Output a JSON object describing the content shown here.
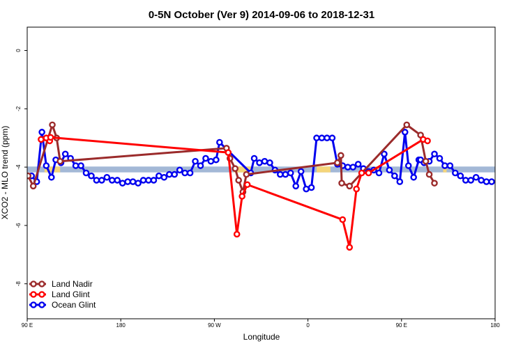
{
  "chart_data": {
    "type": "line",
    "title": "0-5N October (Ver 9)   2014-09-06 to 2018-12-31",
    "xlabel": "Longitude",
    "ylabel": "XCO2 - MLO trend (ppm)",
    "xlim": [
      -90,
      180
    ],
    "ylim": [
      -9.2,
      0.8
    ],
    "x_ticks": [
      {
        "value": -90,
        "label": "90 E"
      },
      {
        "value": -36,
        "label": "180"
      },
      {
        "value": 18,
        "label": "90 W"
      },
      {
        "value": 72,
        "label": "0"
      },
      {
        "value": 126,
        "label": "90 E"
      },
      {
        "value": 180,
        "label": "180"
      }
    ],
    "y_ticks": [
      {
        "value": 0,
        "label": "0"
      },
      {
        "value": -2,
        "label": "-2"
      },
      {
        "value": -4,
        "label": "-4"
      },
      {
        "value": -6,
        "label": "-6"
      },
      {
        "value": -8,
        "label": "-8"
      }
    ],
    "grid": false,
    "legend_position": "bottom-left",
    "reference_band": {
      "y_center": -4.08,
      "y_half_width": 0.1,
      "ocean_color": "#a3b8d6",
      "land_color": "#f5d57a",
      "land_segments": [
        [
          -80,
          -71
        ],
        [
          29,
          40
        ],
        [
          77,
          85
        ],
        [
          109,
          114
        ],
        [
          150,
          152
        ]
      ]
    },
    "series": [
      {
        "name": "Land Nadir",
        "color": "#9b2b2b",
        "x": [
          -89.5,
          -86.5,
          -75.5,
          -73,
          -71,
          25,
          27,
          30,
          32,
          34.5,
          36.5,
          89,
          91,
          91.5,
          96,
          129,
          137,
          140,
          142,
          145
        ],
        "y": [
          -4.3,
          -4.65,
          -2.55,
          -3.0,
          -3.8,
          -3.35,
          -3.7,
          -4.05,
          -4.45,
          -4.85,
          -4.25,
          -3.85,
          -3.6,
          -4.55,
          -4.65,
          -2.55,
          -2.9,
          -3.8,
          -4.25,
          -4.55
        ]
      },
      {
        "name": "Land Glint",
        "color": "#ff0000",
        "x": [
          -82,
          -77,
          -79,
          -76.5,
          26,
          31,
          34,
          37,
          92,
          96,
          100,
          103,
          107,
          138.5,
          141
        ],
        "y": [
          -3.05,
          -3.1,
          -3.0,
          -2.98,
          -3.5,
          -6.3,
          -5.0,
          -4.6,
          -5.8,
          -6.75,
          -4.75,
          -4.2,
          -4.2,
          -3.05,
          -3.1
        ]
      },
      {
        "name": "Ocean Glint",
        "color": "#0000ee",
        "x": [
          -87.5,
          -84.5,
          -81.5,
          -79,
          -76,
          -73.5,
          -70.5,
          -68,
          -65,
          -62,
          -59,
          -56,
          -53,
          -50,
          -47,
          -44,
          -41,
          -38,
          -35,
          -32,
          -29,
          -26,
          -23,
          -20,
          -17,
          -14,
          -11,
          -8,
          -5,
          -2,
          1,
          4,
          7,
          10,
          13,
          16,
          19,
          21,
          39,
          41,
          44,
          47,
          50,
          53,
          56,
          59,
          62,
          65,
          68,
          71,
          74,
          77,
          80,
          83,
          86,
          89,
          92,
          95,
          98,
          101,
          104,
          107,
          110,
          113,
          116,
          119,
          122,
          125,
          128,
          130,
          133,
          136,
          137,
          139,
          142,
          145,
          148,
          151,
          154,
          157,
          160,
          163,
          166,
          169,
          172,
          175,
          178
        ],
        "y": [
          -4.3,
          -4.5,
          -2.8,
          -3.95,
          -4.35,
          -3.75,
          -3.85,
          -3.55,
          -3.7,
          -3.95,
          -3.95,
          -4.2,
          -4.3,
          -4.45,
          -4.45,
          -4.35,
          -4.45,
          -4.45,
          -4.55,
          -4.5,
          -4.5,
          -4.55,
          -4.45,
          -4.45,
          -4.45,
          -4.3,
          -4.35,
          -4.25,
          -4.25,
          -4.1,
          -4.2,
          -4.2,
          -3.8,
          -3.95,
          -3.7,
          -3.8,
          -3.75,
          -3.15,
          -4.2,
          -3.7,
          -3.85,
          -3.8,
          -3.85,
          -4.1,
          -4.25,
          -4.25,
          -4.2,
          -4.65,
          -4.15,
          -4.75,
          -4.7,
          -3.0,
          -3.0,
          -3.0,
          -3.0,
          -3.9,
          -3.95,
          -4.0,
          -4.0,
          -3.9,
          -4.05,
          -4.15,
          -4.1,
          -4.2,
          -3.55,
          -4.1,
          -4.3,
          -4.5,
          -2.8,
          -3.95,
          -4.35,
          -3.75,
          -3.75,
          -3.85,
          -3.8,
          -3.55,
          -3.7,
          -3.95,
          -3.95,
          -4.2,
          -4.3,
          -4.45,
          -4.45,
          -4.35,
          -4.45,
          -4.5,
          -4.5
        ]
      }
    ]
  }
}
